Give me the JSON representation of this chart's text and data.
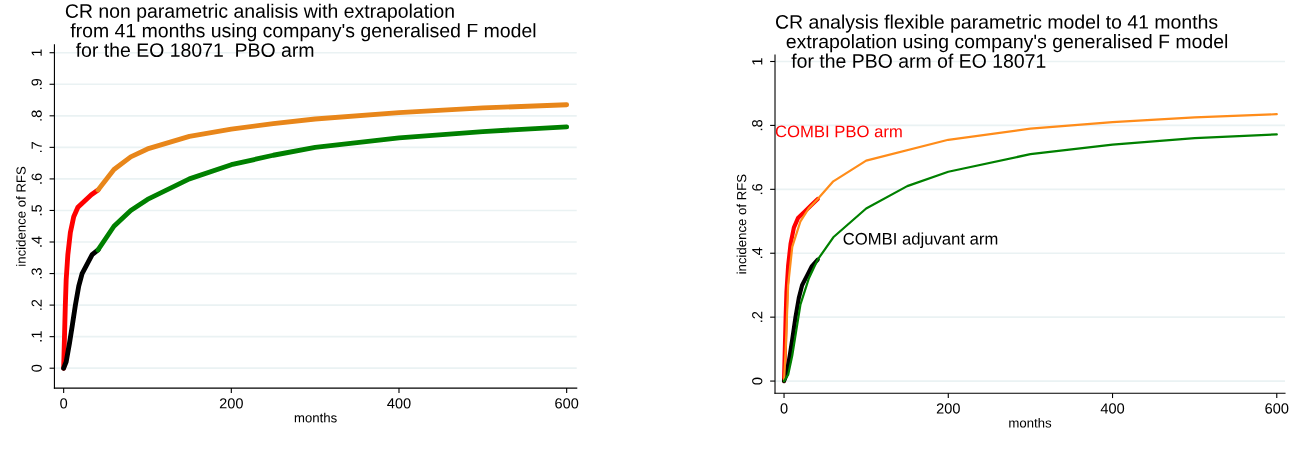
{
  "chart_data": [
    {
      "type": "line",
      "title": "CR non parametric analisis with extrapolation\n from 41 months using company's generalised F model\n  for the EO 18071  PBO arm",
      "xlabel": "months",
      "ylabel": "incidence of RFS",
      "xlim": [
        -11,
        612
      ],
      "ylim": [
        -0.063,
        1.025
      ],
      "xticks": [
        0,
        200,
        400,
        600
      ],
      "yticks": [
        {
          "value": 0,
          "label": "0"
        },
        {
          "value": 0.1,
          "label": ".1"
        },
        {
          "value": 0.2,
          "label": ".2"
        },
        {
          "value": 0.3,
          "label": ".3"
        },
        {
          "value": 0.4,
          "label": ".4"
        },
        {
          "value": 0.5,
          "label": ".5"
        },
        {
          "value": 0.6,
          "label": ".6"
        },
        {
          "value": 0.7,
          "label": ".7"
        },
        {
          "value": 0.8,
          "label": ".8"
        },
        {
          "value": 0.9,
          "label": ".9"
        },
        {
          "value": 1,
          "label": "1"
        }
      ],
      "grid": "y",
      "legend": false,
      "series": [
        {
          "color": "#ff0000",
          "x": [
            0,
            1,
            2,
            3,
            5,
            8,
            12,
            17,
            25,
            33,
            41
          ],
          "values": [
            0,
            0.1,
            0.2,
            0.28,
            0.36,
            0.43,
            0.48,
            0.51,
            0.53,
            0.55,
            0.565
          ]
        },
        {
          "color": "#e8861a",
          "x": [
            41,
            60,
            80,
            100,
            150,
            200,
            250,
            300,
            400,
            500,
            600
          ],
          "values": [
            0.565,
            0.63,
            0.67,
            0.695,
            0.735,
            0.758,
            0.775,
            0.79,
            0.81,
            0.825,
            0.835
          ]
        },
        {
          "color": "#000000",
          "x": [
            0,
            3,
            7,
            10,
            14,
            18,
            22,
            28,
            34,
            41
          ],
          "values": [
            0,
            0.02,
            0.08,
            0.13,
            0.2,
            0.26,
            0.3,
            0.33,
            0.36,
            0.375
          ]
        },
        {
          "color": "#008000",
          "x": [
            41,
            60,
            80,
            100,
            150,
            200,
            250,
            300,
            400,
            500,
            600
          ],
          "values": [
            0.375,
            0.45,
            0.5,
            0.535,
            0.6,
            0.645,
            0.675,
            0.7,
            0.73,
            0.75,
            0.765
          ]
        }
      ]
    },
    {
      "type": "line",
      "title": "CR analysis flexible parametric model to 41 months\n  extrapolation using company's generalised F model\n   for the PBO arm of EO 18071",
      "xlabel": "months",
      "ylabel": "incidence of RFS",
      "xlim": [
        -11,
        610
      ],
      "ylim": [
        -0.038,
        1.02
      ],
      "xticks": [
        0,
        200,
        400,
        600
      ],
      "yticks": [
        {
          "value": 0,
          "label": "0"
        },
        {
          "value": 0.2,
          "label": ".2"
        },
        {
          "value": 0.4,
          "label": ".4"
        },
        {
          "value": 0.6,
          "label": ".6"
        },
        {
          "value": 0.8,
          "label": ".8"
        },
        {
          "value": 1,
          "label": "1"
        }
      ],
      "grid": "y",
      "legend": false,
      "series": [
        {
          "name": "COMBI PBO arm",
          "color": "#ff0000",
          "x": [
            0,
            1,
            2,
            3,
            5,
            8,
            12,
            17,
            25,
            33,
            41
          ],
          "values": [
            0,
            0.1,
            0.2,
            0.28,
            0.36,
            0.43,
            0.48,
            0.51,
            0.53,
            0.55,
            0.57
          ]
        },
        {
          "name": "COMBI adjuvant arm",
          "color": "#000000",
          "x": [
            0,
            3,
            7,
            10,
            14,
            18,
            22,
            28,
            34,
            41
          ],
          "values": [
            0,
            0.02,
            0.08,
            0.13,
            0.2,
            0.26,
            0.3,
            0.33,
            0.36,
            0.38
          ]
        },
        {
          "color": "#ff8c1a",
          "x": [
            0,
            2,
            5,
            10,
            20,
            30,
            41,
            60,
            100,
            200,
            300,
            400,
            500,
            600
          ],
          "values": [
            0,
            0.1,
            0.3,
            0.42,
            0.5,
            0.54,
            0.57,
            0.625,
            0.69,
            0.755,
            0.79,
            0.81,
            0.825,
            0.835
          ]
        },
        {
          "color": "#008000",
          "x": [
            0,
            5,
            10,
            15,
            20,
            30,
            41,
            60,
            100,
            150,
            200,
            300,
            400,
            500,
            600
          ],
          "values": [
            0,
            0.02,
            0.08,
            0.16,
            0.24,
            0.32,
            0.38,
            0.45,
            0.54,
            0.61,
            0.655,
            0.71,
            0.74,
            0.76,
            0.772
          ]
        }
      ]
    }
  ]
}
